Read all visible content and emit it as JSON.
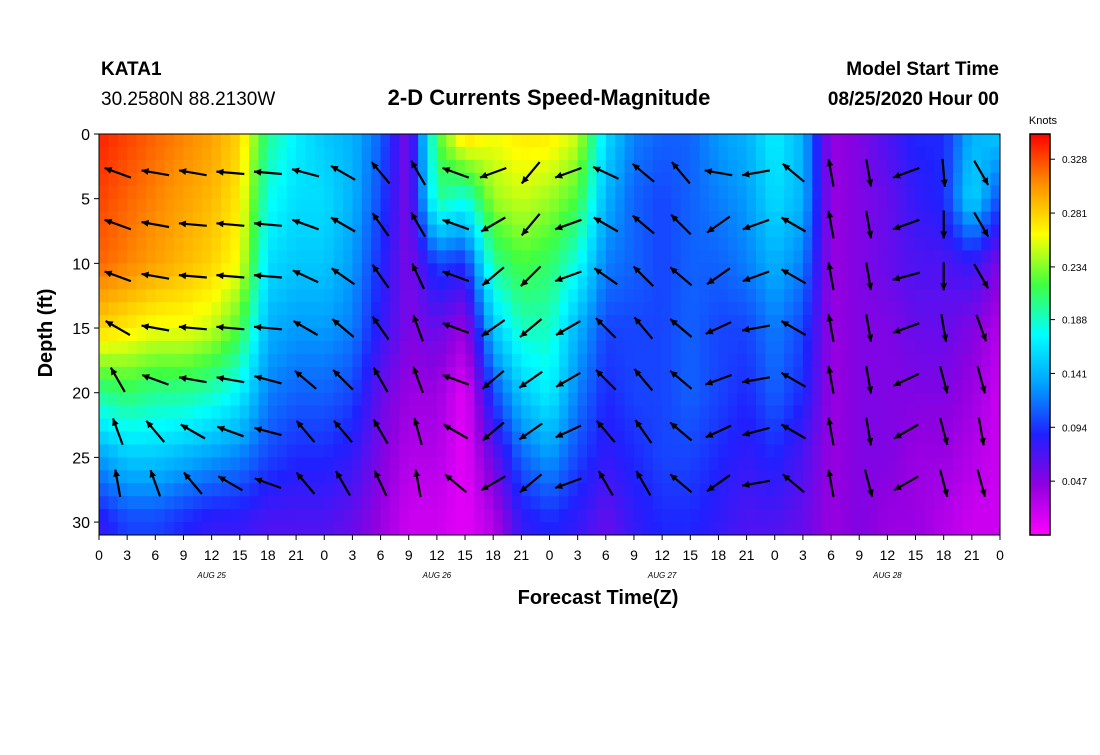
{
  "header": {
    "station": "KATA1",
    "location": "30.2580N 88.2130W",
    "title": "2-D Currents Speed-Magnitude",
    "model_start_label": "Model Start Time",
    "model_start_value": "08/25/2020 Hour 00"
  },
  "chart_data": {
    "type": "heatmap",
    "title": "2-D Currents Speed-Magnitude",
    "xlabel": "Forecast Time(Z)",
    "ylabel": "Depth (ft)",
    "x_ticks": [
      "0",
      "3",
      "6",
      "9",
      "12",
      "15",
      "18",
      "21",
      "0",
      "3",
      "6",
      "9",
      "12",
      "15",
      "18",
      "21",
      "0",
      "3",
      "6",
      "9",
      "12",
      "15",
      "18",
      "21",
      "0",
      "3",
      "6",
      "9",
      "12",
      "15",
      "18",
      "21",
      "0"
    ],
    "day_labels": [
      "AUG 25",
      "AUG 26",
      "AUG 27",
      "AUG 28"
    ],
    "x_range_hours": [
      0,
      96
    ],
    "y_ticks": [
      0,
      5,
      10,
      15,
      20,
      25,
      30
    ],
    "y_range": [
      0,
      31
    ],
    "y_inverted": true,
    "colorbar": {
      "unit": "Knots",
      "ticks": [
        0.328,
        0.281,
        0.234,
        0.188,
        0.141,
        0.094,
        0.047
      ],
      "range": [
        0.0,
        0.35
      ],
      "colors": [
        "#ff00ff",
        "#9000e0",
        "#2020ff",
        "#00a0ff",
        "#00ffff",
        "#40ff40",
        "#ffff00",
        "#ff9000",
        "#ff0000"
      ]
    },
    "speed_samples": {
      "hours": [
        0,
        3,
        6,
        9,
        12,
        15,
        18,
        21,
        24,
        27,
        30,
        33,
        36,
        39,
        42,
        45,
        48,
        51,
        54,
        57,
        60,
        63,
        66,
        69,
        72,
        75,
        78,
        81,
        84,
        87,
        90,
        93,
        96
      ],
      "depth_ft": [
        0,
        5,
        10,
        15,
        20,
        25,
        30
      ],
      "values": [
        [
          0.34,
          0.33,
          0.32,
          0.31,
          0.3,
          0.28,
          0.2,
          0.17,
          0.15,
          0.14,
          0.11,
          0.05,
          0.22,
          0.28,
          0.26,
          0.27,
          0.27,
          0.25,
          0.16,
          0.12,
          0.11,
          0.11,
          0.13,
          0.14,
          0.17,
          0.14,
          0.04,
          0.05,
          0.07,
          0.09,
          0.09,
          0.14,
          0.15
        ],
        [
          0.33,
          0.32,
          0.31,
          0.3,
          0.29,
          0.27,
          0.18,
          0.16,
          0.16,
          0.14,
          0.1,
          0.05,
          0.2,
          0.18,
          0.24,
          0.25,
          0.24,
          0.22,
          0.14,
          0.11,
          0.1,
          0.11,
          0.12,
          0.13,
          0.16,
          0.14,
          0.04,
          0.05,
          0.06,
          0.08,
          0.09,
          0.16,
          0.1
        ],
        [
          0.32,
          0.31,
          0.3,
          0.29,
          0.28,
          0.26,
          0.16,
          0.15,
          0.15,
          0.13,
          0.09,
          0.05,
          0.1,
          0.09,
          0.2,
          0.22,
          0.21,
          0.18,
          0.12,
          0.11,
          0.1,
          0.11,
          0.11,
          0.12,
          0.14,
          0.12,
          0.04,
          0.05,
          0.06,
          0.07,
          0.07,
          0.08,
          0.05
        ],
        [
          0.28,
          0.27,
          0.26,
          0.26,
          0.25,
          0.22,
          0.14,
          0.13,
          0.13,
          0.12,
          0.08,
          0.05,
          0.06,
          0.04,
          0.15,
          0.19,
          0.19,
          0.14,
          0.1,
          0.1,
          0.1,
          0.11,
          0.1,
          0.1,
          0.12,
          0.1,
          0.04,
          0.05,
          0.05,
          0.06,
          0.06,
          0.05,
          0.03
        ],
        [
          0.2,
          0.21,
          0.2,
          0.2,
          0.19,
          0.17,
          0.12,
          0.11,
          0.11,
          0.1,
          0.06,
          0.04,
          0.04,
          0.01,
          0.1,
          0.15,
          0.17,
          0.12,
          0.09,
          0.1,
          0.1,
          0.11,
          0.1,
          0.09,
          0.11,
          0.09,
          0.04,
          0.05,
          0.05,
          0.05,
          0.05,
          0.04,
          0.02
        ],
        [
          0.13,
          0.15,
          0.15,
          0.14,
          0.13,
          0.12,
          0.1,
          0.09,
          0.09,
          0.08,
          0.05,
          0.03,
          0.03,
          0.01,
          0.06,
          0.11,
          0.13,
          0.1,
          0.08,
          0.09,
          0.1,
          0.1,
          0.09,
          0.08,
          0.09,
          0.07,
          0.04,
          0.05,
          0.05,
          0.04,
          0.04,
          0.03,
          0.02
        ],
        [
          0.08,
          0.1,
          0.1,
          0.09,
          0.08,
          0.08,
          0.07,
          0.07,
          0.07,
          0.06,
          0.04,
          0.02,
          0.02,
          0.01,
          0.03,
          0.08,
          0.09,
          0.08,
          0.06,
          0.08,
          0.09,
          0.09,
          0.08,
          0.07,
          0.07,
          0.06,
          0.04,
          0.05,
          0.04,
          0.04,
          0.03,
          0.02,
          0.02
        ]
      ]
    },
    "vector_depths_ft": [
      3,
      7,
      11,
      15,
      19,
      23,
      27
    ],
    "vector_hours": [
      2,
      6,
      10,
      14,
      18,
      22,
      26,
      30,
      34,
      38,
      42,
      46,
      50,
      54,
      58,
      62,
      66,
      70,
      74,
      78,
      82,
      86,
      90,
      94
    ],
    "vector_angles_deg": [
      [
        160,
        170,
        170,
        175,
        175,
        165,
        150,
        130,
        120,
        160,
        200,
        230,
        200,
        155,
        140,
        130,
        170,
        190,
        140,
        100,
        280,
        200,
        275,
        300
      ],
      [
        160,
        170,
        175,
        175,
        175,
        160,
        150,
        125,
        120,
        160,
        210,
        230,
        200,
        150,
        140,
        135,
        215,
        200,
        150,
        100,
        280,
        200,
        270,
        300
      ],
      [
        160,
        170,
        175,
        175,
        175,
        155,
        145,
        125,
        115,
        160,
        220,
        225,
        200,
        145,
        135,
        140,
        215,
        200,
        150,
        100,
        280,
        195,
        270,
        300
      ],
      [
        150,
        170,
        175,
        175,
        175,
        150,
        140,
        125,
        110,
        160,
        215,
        220,
        210,
        135,
        130,
        140,
        205,
        190,
        150,
        100,
        280,
        200,
        280,
        290
      ],
      [
        120,
        160,
        170,
        170,
        165,
        140,
        135,
        120,
        110,
        160,
        220,
        215,
        210,
        135,
        130,
        140,
        200,
        190,
        150,
        100,
        280,
        205,
        285,
        285
      ],
      [
        110,
        130,
        150,
        160,
        165,
        130,
        130,
        120,
        105,
        150,
        220,
        215,
        205,
        130,
        125,
        140,
        205,
        195,
        150,
        100,
        280,
        210,
        285,
        280
      ],
      [
        100,
        110,
        130,
        150,
        160,
        130,
        120,
        115,
        100,
        140,
        210,
        220,
        200,
        120,
        120,
        140,
        215,
        190,
        140,
        100,
        285,
        210,
        285,
        285
      ]
    ]
  }
}
